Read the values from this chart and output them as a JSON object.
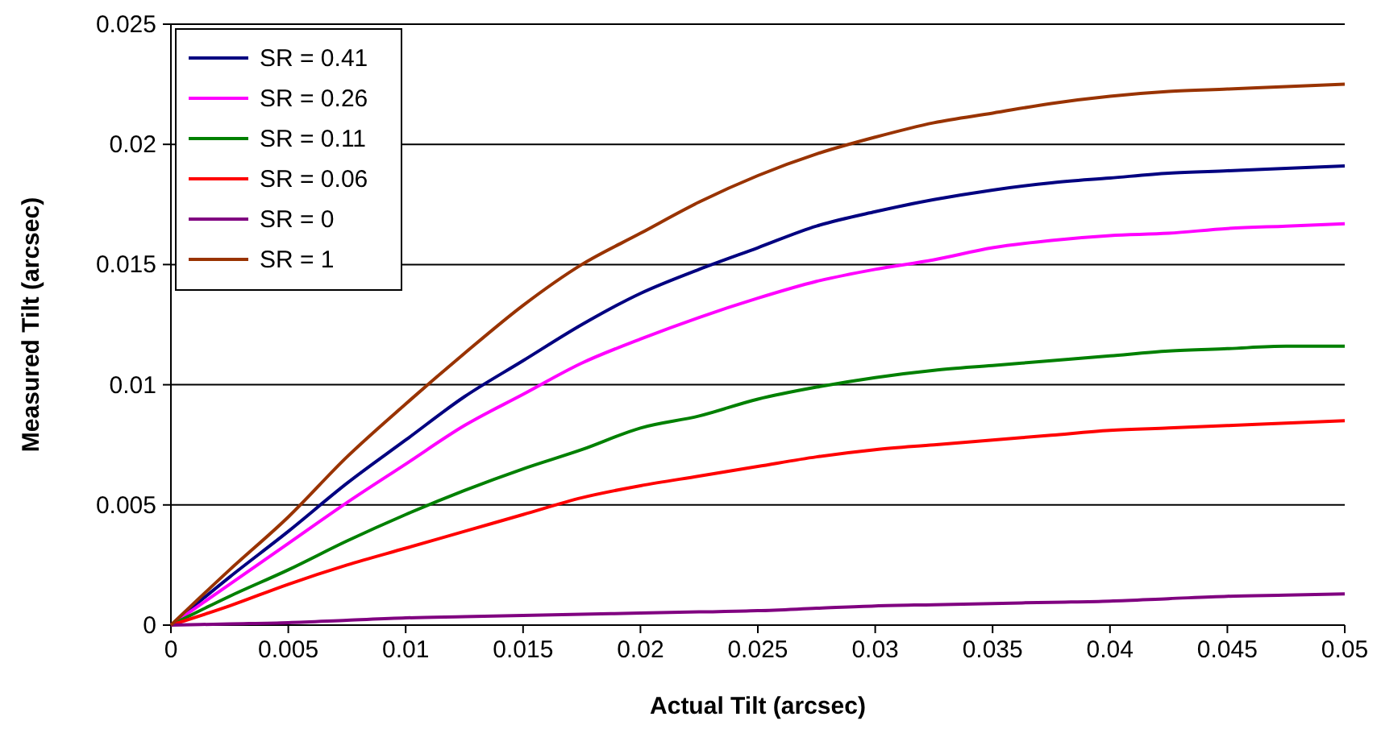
{
  "chart_data": {
    "type": "line",
    "xlabel": "Actual Tilt (arcsec)",
    "ylabel": "Measured Tilt (arcsec)",
    "x": [
      0,
      0.0025,
      0.005,
      0.0075,
      0.01,
      0.0125,
      0.015,
      0.0175,
      0.02,
      0.0225,
      0.025,
      0.0275,
      0.03,
      0.0325,
      0.035,
      0.0375,
      0.04,
      0.0425,
      0.045,
      0.0475,
      0.05
    ],
    "series": [
      {
        "name": "SR = 0.41",
        "color": "#000080",
        "values": [
          0,
          0.002,
          0.0039,
          0.0059,
          0.0077,
          0.0095,
          0.011,
          0.0125,
          0.0138,
          0.0148,
          0.0157,
          0.0166,
          0.0172,
          0.0177,
          0.0181,
          0.0184,
          0.0186,
          0.0188,
          0.0189,
          0.019,
          0.0191
        ]
      },
      {
        "name": "SR = 0.26",
        "color": "#ff00ff",
        "values": [
          0,
          0.0017,
          0.0034,
          0.0051,
          0.0067,
          0.0083,
          0.0096,
          0.0109,
          0.0119,
          0.0128,
          0.0136,
          0.0143,
          0.0148,
          0.0152,
          0.0157,
          0.016,
          0.0162,
          0.0163,
          0.0165,
          0.0166,
          0.0167
        ]
      },
      {
        "name": "SR = 0.11",
        "color": "#008000",
        "values": [
          0,
          0.0012,
          0.0023,
          0.0035,
          0.0046,
          0.0056,
          0.0065,
          0.0073,
          0.0082,
          0.0087,
          0.0094,
          0.0099,
          0.0103,
          0.0106,
          0.0108,
          0.011,
          0.0112,
          0.0114,
          0.0115,
          0.0116,
          0.0116
        ]
      },
      {
        "name": "SR = 0.06",
        "color": "#ff0000",
        "values": [
          0,
          0.0008,
          0.0017,
          0.0025,
          0.0032,
          0.0039,
          0.0046,
          0.0053,
          0.0058,
          0.0062,
          0.0066,
          0.007,
          0.0073,
          0.0075,
          0.0077,
          0.0079,
          0.0081,
          0.0082,
          0.0083,
          0.0084,
          0.0085
        ]
      },
      {
        "name": "SR = 0",
        "color": "#800080",
        "values": [
          0,
          5e-05,
          0.0001,
          0.0002,
          0.0003,
          0.00035,
          0.0004,
          0.00045,
          0.0005,
          0.00055,
          0.0006,
          0.0007,
          0.0008,
          0.00085,
          0.0009,
          0.00095,
          0.001,
          0.0011,
          0.0012,
          0.00125,
          0.0013
        ]
      },
      {
        "name": "SR = 1",
        "color": "#993300",
        "values": [
          0,
          0.0023,
          0.0045,
          0.007,
          0.0092,
          0.0113,
          0.0133,
          0.015,
          0.0163,
          0.0176,
          0.0187,
          0.0196,
          0.0203,
          0.0209,
          0.0213,
          0.0217,
          0.022,
          0.0222,
          0.0223,
          0.0224,
          0.0225
        ]
      }
    ],
    "xlim": [
      0,
      0.05
    ],
    "xticks": [
      0,
      0.005,
      0.01,
      0.015,
      0.02,
      0.025,
      0.03,
      0.035,
      0.04,
      0.045,
      0.05
    ],
    "ylim": [
      0,
      0.025
    ],
    "yticks": [
      0,
      0.005,
      0.01,
      0.015,
      0.02,
      0.025
    ],
    "grid": "y",
    "legend": "top left",
    "marker": "none",
    "line_style": "solid"
  }
}
